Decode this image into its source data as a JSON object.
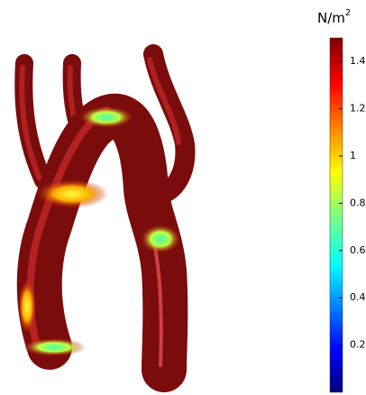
{
  "colorbar": {
    "unit": {
      "base": "N/m",
      "exponent": "2"
    },
    "range": [
      0,
      1.5
    ],
    "ticks": [
      0.2,
      0.4,
      0.6,
      0.8,
      1,
      1.2,
      1.4
    ]
  }
}
